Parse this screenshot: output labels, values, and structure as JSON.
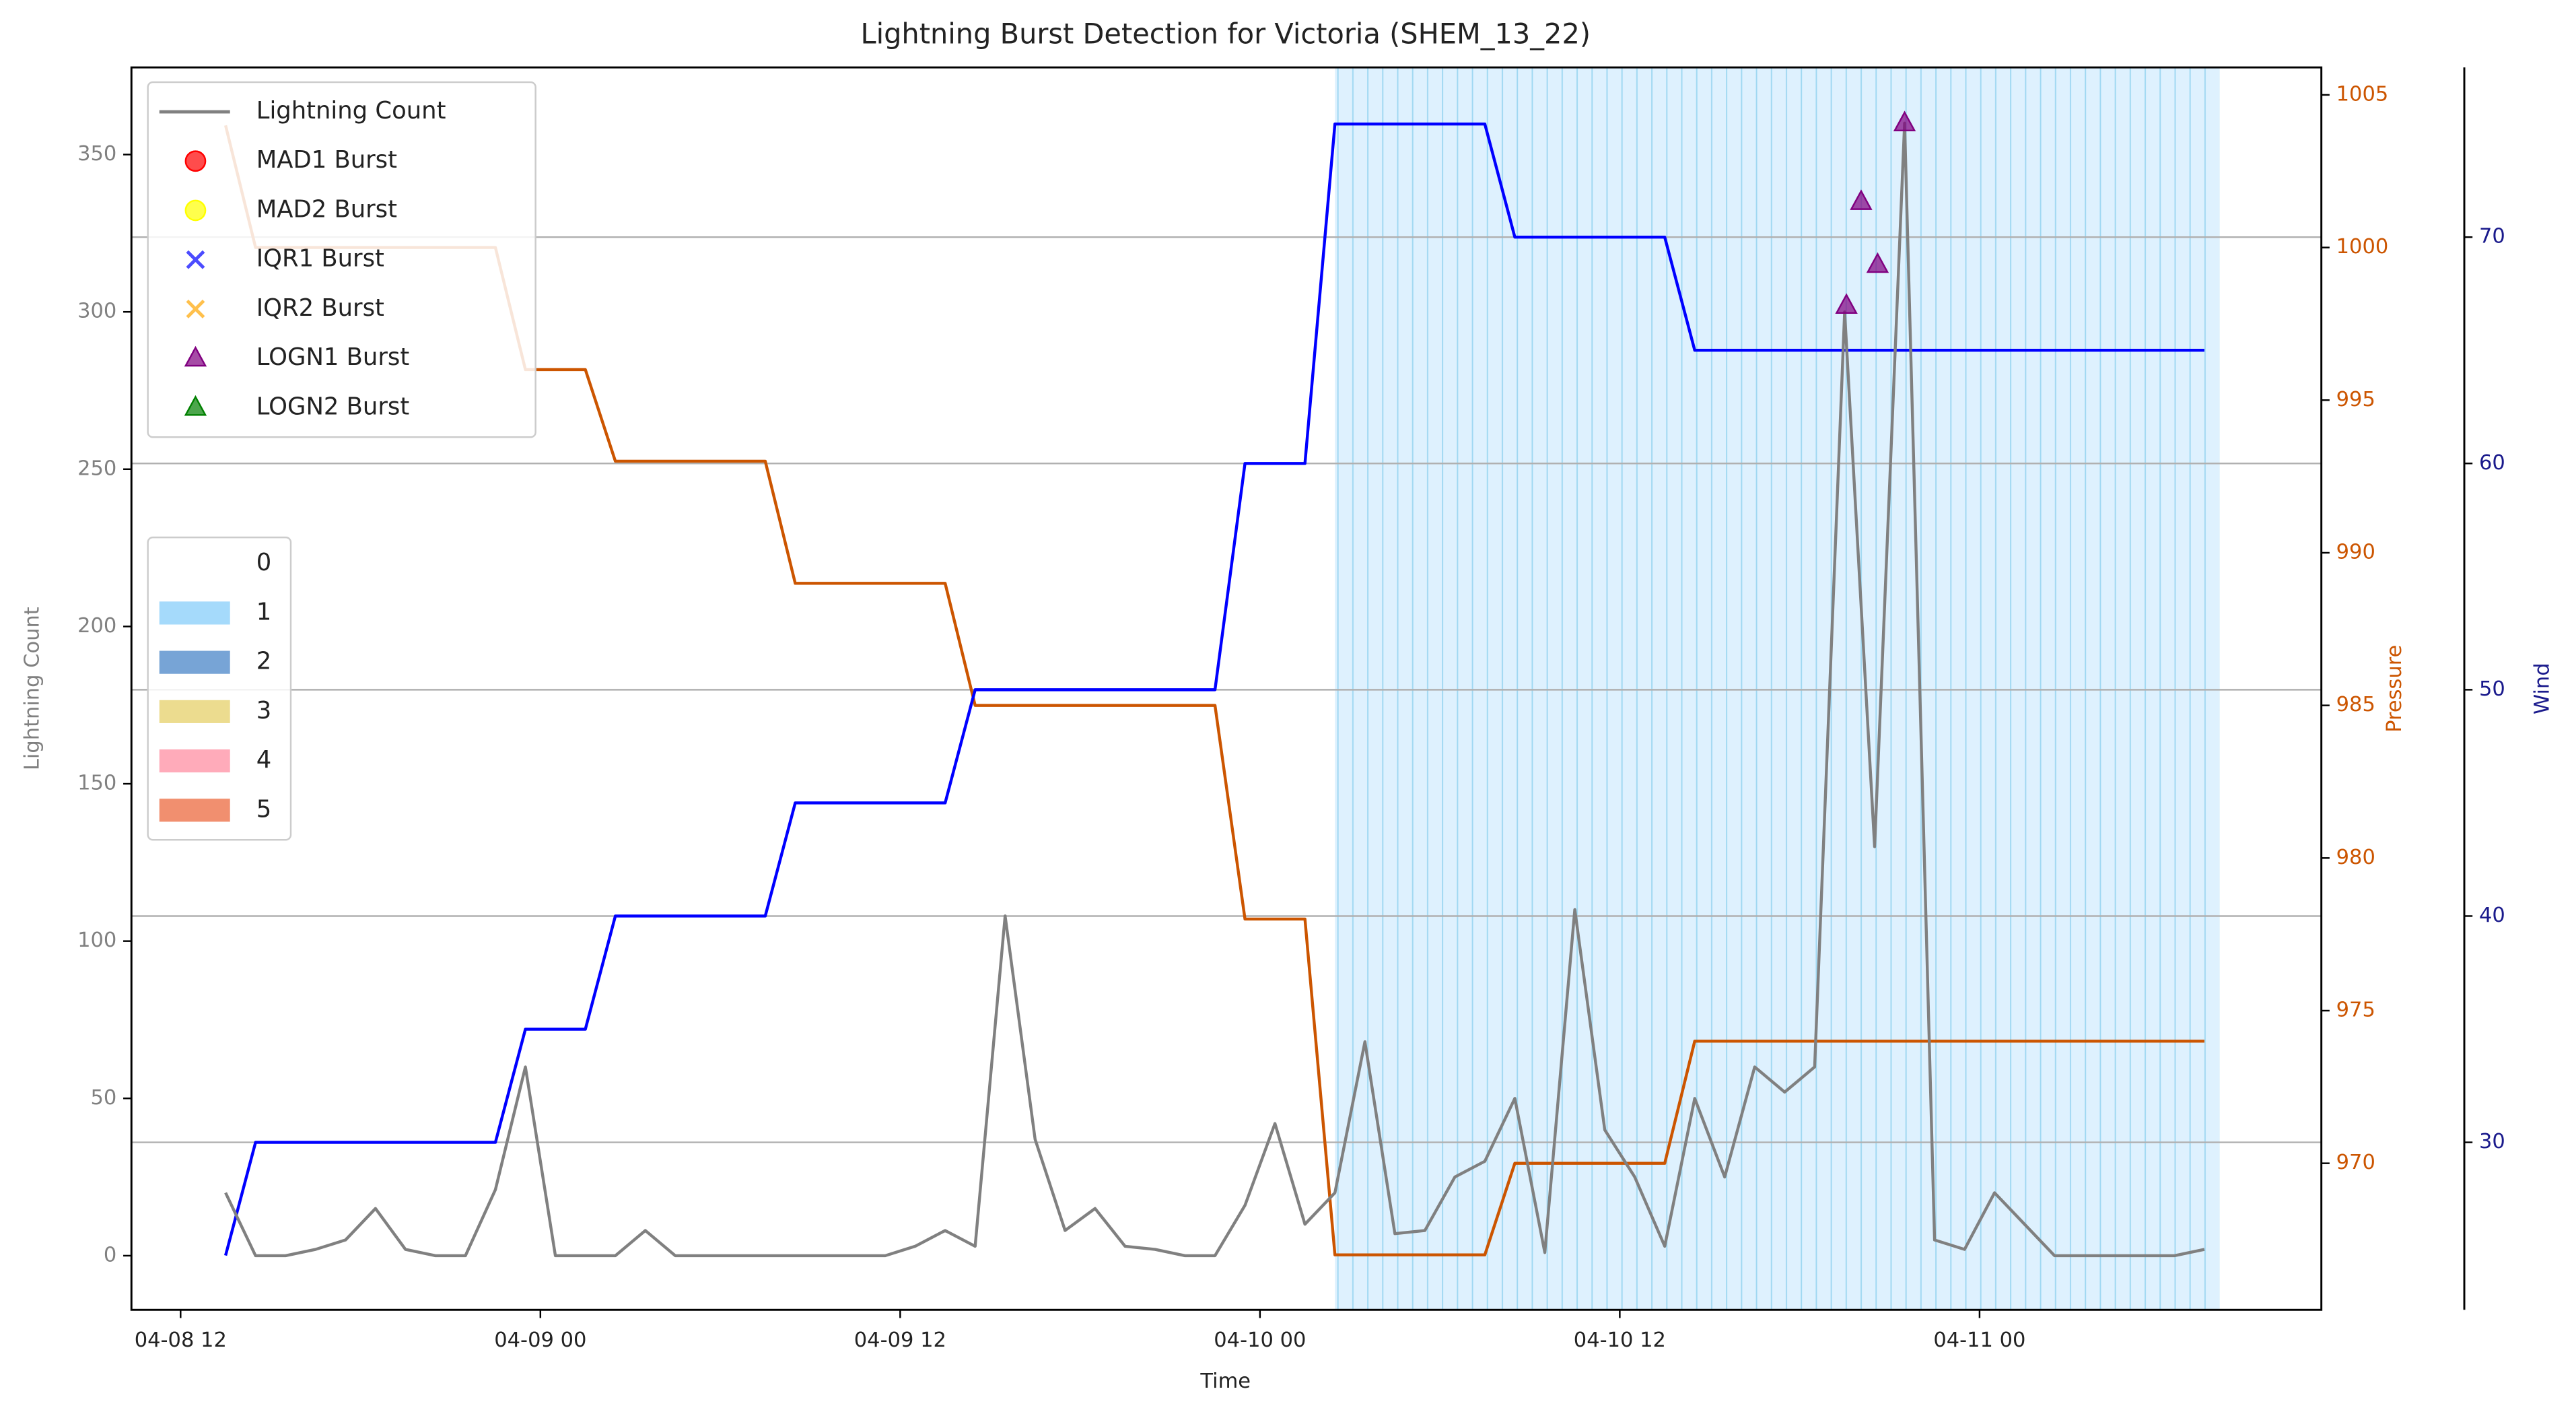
{
  "chart_data": {
    "type": "line",
    "title": "Lightning Burst Detection for Victoria (SHEM_13_22)",
    "xlabel": "Time",
    "ylabel": "Lightning Count",
    "y2label": "Pressure",
    "y3label": "Wind",
    "x": [
      1.5,
      2.5,
      3.5,
      4.5,
      5.5,
      6.5,
      7.5,
      8.5,
      9.5,
      10.5,
      11.5,
      12.5,
      13.5,
      14.5,
      15.5,
      16.5,
      17.5,
      18.5,
      19.5,
      20.5,
      21.5,
      22.5,
      23.5,
      24.5,
      25.5,
      26.5,
      27.5,
      28.5,
      29.5,
      30.5,
      31.5,
      32.5,
      33.5,
      34.5,
      35.5,
      36.5,
      37.5,
      38.5,
      39.5,
      40.5,
      41.5,
      42.5,
      43.5,
      44.5,
      45.5,
      46.5,
      47.5,
      48.5,
      49.5,
      50.5,
      51.5,
      52.5,
      53.5,
      54.5,
      55.5,
      56.5,
      57.5,
      58.5,
      59.5,
      60.5,
      61.5,
      62.5,
      63.5,
      64.5,
      65.5,
      66.5,
      67.5
    ],
    "xlim": [
      -1.64,
      71.4
    ],
    "xticks": [
      {
        "value": 0,
        "label": "04-08 12"
      },
      {
        "value": 12,
        "label": "04-09 00"
      },
      {
        "value": 24,
        "label": "04-09 12"
      },
      {
        "value": 36,
        "label": "04-10 00"
      },
      {
        "value": 48,
        "label": "04-10 12"
      },
      {
        "value": 60,
        "label": "04-11 00"
      }
    ],
    "ylim": [
      -17.2,
      377.7
    ],
    "yticks": [
      0,
      50,
      100,
      150,
      200,
      250,
      300,
      350
    ],
    "y2lim": [
      965.2,
      1005.9
    ],
    "y2ticks": [
      970,
      975,
      980,
      985,
      990,
      995,
      1000,
      1005
    ],
    "y3lim": [
      22.6,
      77.5
    ],
    "y3ticks": [
      30,
      40,
      50,
      60,
      70
    ],
    "grid": "y3",
    "series": [
      {
        "name": "Lightning Count",
        "color": "#808080",
        "axis": "y",
        "marker": "line",
        "values": [
          20,
          0,
          0,
          2,
          5,
          15,
          2,
          0,
          0,
          21,
          60,
          0,
          0,
          0,
          8,
          0,
          0,
          0,
          0,
          0,
          0,
          0,
          0,
          3,
          8,
          3,
          108,
          37,
          8,
          15,
          3,
          2,
          0,
          0,
          16,
          42,
          10,
          20,
          68,
          7,
          8,
          25,
          30,
          50,
          1,
          110,
          40,
          25,
          3,
          50,
          25,
          60,
          52,
          60,
          300,
          130,
          360,
          5,
          2,
          20,
          10,
          0,
          0,
          0,
          0,
          0,
          2
        ]
      },
      {
        "name": "MAD1 Burst",
        "color": "#ff0000",
        "marker": "circle",
        "axis": "y",
        "x": [],
        "values": []
      },
      {
        "name": "MAD2 Burst",
        "color": "#ffff00",
        "marker": "circle",
        "axis": "y",
        "x": [],
        "values": []
      },
      {
        "name": "IQR1 Burst",
        "color": "#0000ff",
        "marker": "x",
        "axis": "y",
        "x": [],
        "values": []
      },
      {
        "name": "IQR2 Burst",
        "color": "#ffa500",
        "marker": "x",
        "axis": "y",
        "x": [],
        "values": []
      },
      {
        "name": "LOGN1 Burst",
        "color": "#800080",
        "marker": "triangle",
        "axis": "y",
        "x": [
          55.56,
          56.05,
          56.6,
          57.5
        ],
        "values": [
          302,
          335,
          315,
          360
        ]
      },
      {
        "name": "LOGN2 Burst",
        "color": "#008000",
        "marker": "triangle",
        "axis": "y",
        "x": [],
        "values": []
      },
      {
        "color": "#cc5500",
        "axis": "y2",
        "marker": "line",
        "values": [
          1004,
          1000,
          1000,
          1000,
          1000,
          1000,
          1000,
          1000,
          1000,
          1000,
          996,
          996,
          996,
          993,
          993,
          993,
          993,
          993,
          993,
          989,
          989,
          989,
          989,
          989,
          989,
          985,
          985,
          985,
          985,
          985,
          985,
          985,
          985,
          985,
          978,
          978,
          978,
          967,
          967,
          967,
          967,
          967,
          967,
          970,
          970,
          970,
          970,
          970,
          970,
          974,
          974,
          974,
          974,
          974,
          974,
          974,
          974,
          974,
          974,
          974,
          974,
          974,
          974,
          974,
          974,
          974,
          974
        ]
      },
      {
        "color": "#0000ff",
        "axis": "y3",
        "marker": "line",
        "values": [
          25,
          30,
          30,
          30,
          30,
          30,
          30,
          30,
          30,
          30,
          35,
          35,
          35,
          40,
          40,
          40,
          40,
          40,
          40,
          45,
          45,
          45,
          45,
          45,
          45,
          50,
          50,
          50,
          50,
          50,
          50,
          50,
          50,
          50,
          60,
          60,
          60,
          75,
          75,
          75,
          75,
          75,
          75,
          70,
          70,
          70,
          70,
          70,
          70,
          65,
          65,
          65,
          65,
          65,
          65,
          65,
          65,
          65,
          65,
          65,
          65,
          65,
          65,
          65,
          65,
          65,
          65
        ]
      }
    ],
    "levels": [
      {
        "label": "0",
        "color": "none"
      },
      {
        "label": "1",
        "color": "#87cefa"
      },
      {
        "label": "2",
        "color": "#4a86c8"
      },
      {
        "label": "3",
        "color": "#e6d06a"
      },
      {
        "label": "4",
        "color": "#ff8fa3"
      },
      {
        "label": "5",
        "color": "#ec6a3f"
      }
    ],
    "spans": [
      {
        "start": 38.5,
        "end": 68,
        "level": 1
      }
    ]
  }
}
